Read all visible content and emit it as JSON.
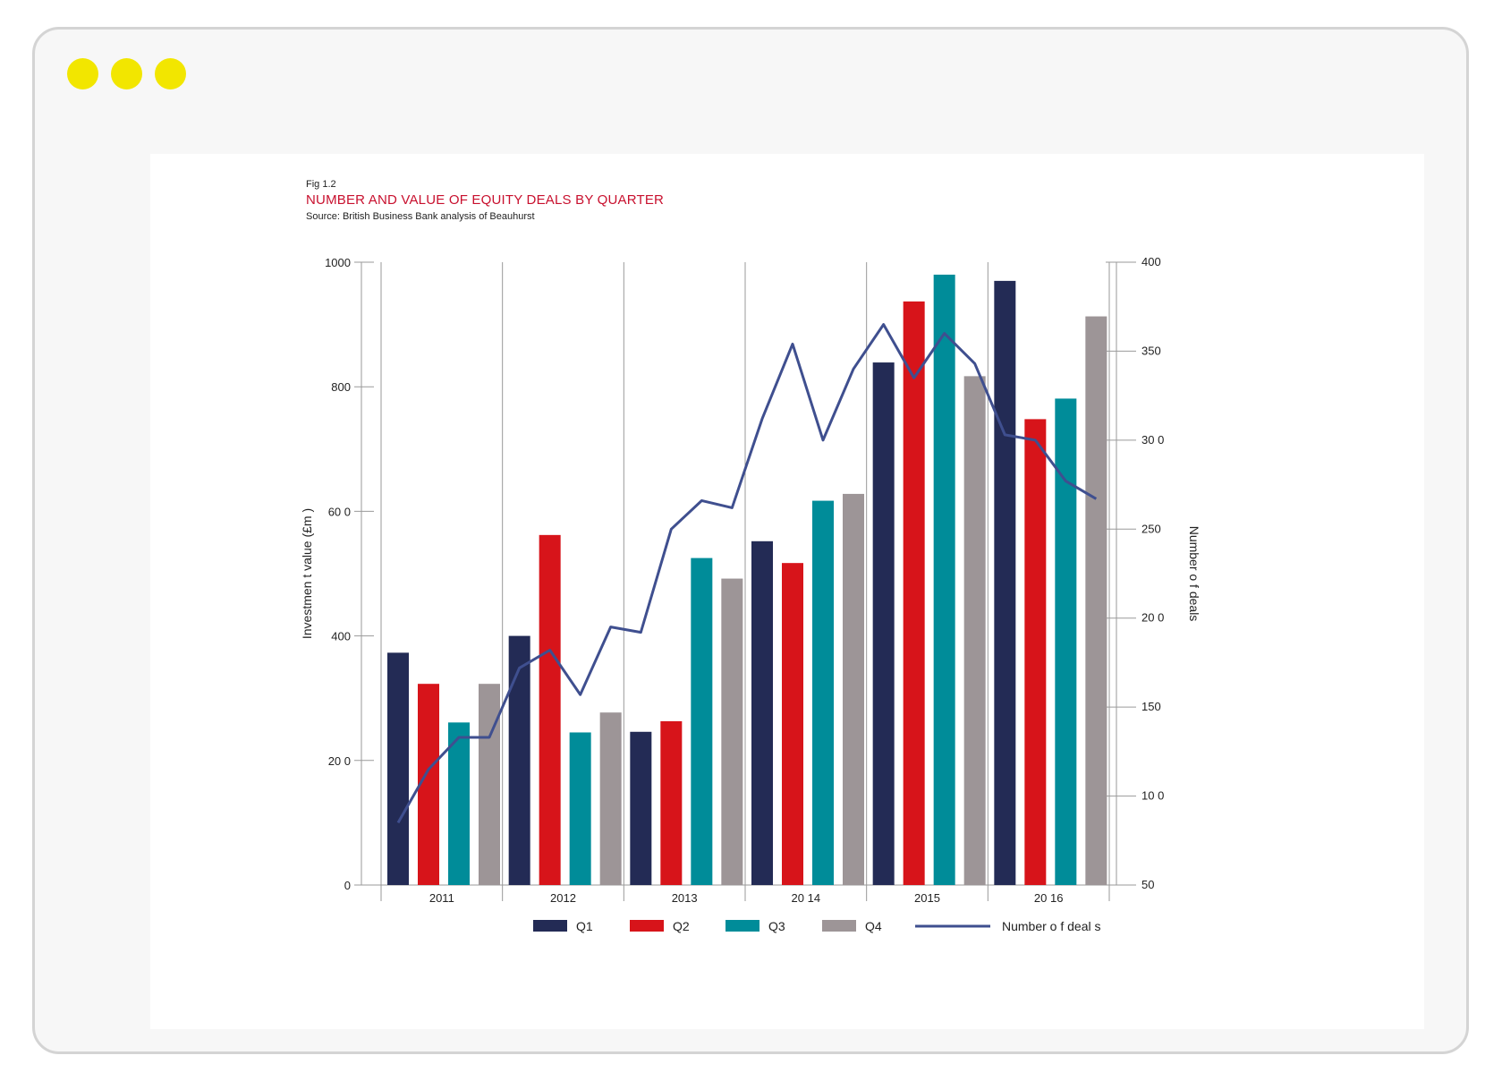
{
  "window": {
    "dot_color": "#f2e600"
  },
  "figure": {
    "label": "Fig 1.2",
    "title": "NUMBER AND VALUE OF EQUITY DEALS BY QUARTER",
    "source": "Source: British Business Bank analysis of Beauhurst",
    "title_color": "#c8102e"
  },
  "chart_data": {
    "type": "bar",
    "categories": [
      "2011",
      "2012",
      "2013",
      "20 14",
      "2015",
      "20 16"
    ],
    "ylabel": "Investmen t value (£m )",
    "y2label": "Number o f deals",
    "ylim": [
      0,
      1000
    ],
    "y2lim": [
      50,
      400
    ],
    "yticks": [
      "0",
      "20 0",
      "400",
      "60 0",
      "800",
      "1000"
    ],
    "y2ticks": [
      "50",
      "10 0",
      "150",
      "20 0",
      "250",
      "30 0",
      "350",
      "400"
    ],
    "series": [
      {
        "name": "Q1",
        "color": "#232b55",
        "values": [
          373,
          400,
          246,
          552,
          839,
          970
        ]
      },
      {
        "name": "Q2",
        "color": "#d7141a",
        "values": [
          323,
          562,
          263,
          517,
          937,
          748
        ]
      },
      {
        "name": "Q3",
        "color": "#008c99",
        "values": [
          261,
          245,
          525,
          617,
          980,
          781
        ]
      },
      {
        "name": "Q4",
        "color": "#9d9597",
        "values": [
          323,
          277,
          492,
          628,
          817,
          913
        ]
      }
    ],
    "line": {
      "name": "Number o f deal s",
      "color": "#3f4f8f",
      "x": [
        "2011 Q1",
        "2011 Q2",
        "2011 Q3",
        "2011 Q4",
        "2012 Q1",
        "2012 Q2",
        "2012 Q3",
        "2012 Q4",
        "2013 Q1",
        "2013 Q2",
        "2013 Q3",
        "2013 Q4",
        "2014 Q1",
        "2014 Q2",
        "2014 Q3",
        "2014 Q4",
        "2015 Q1",
        "2015 Q2",
        "2015 Q3",
        "2015 Q4",
        "2016 Q1",
        "2016 Q2",
        "2016 Q3",
        "2016 Q4"
      ],
      "values": [
        85,
        115,
        133,
        133,
        172,
        182,
        157,
        195,
        192,
        250,
        266,
        262,
        312,
        354,
        300,
        340,
        365,
        335,
        360,
        343,
        303,
        300,
        277,
        267
      ]
    },
    "grid": "vertical separators between years",
    "legend": "bottom-center"
  }
}
